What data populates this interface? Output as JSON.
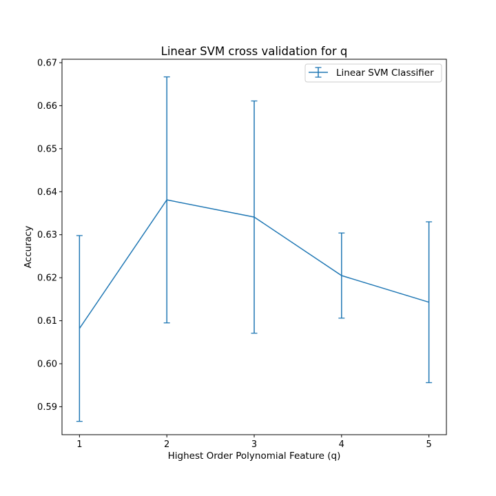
{
  "colors": {
    "series": "#1f77b4",
    "axis": "#000000",
    "legend_border": "#cccccc"
  },
  "chart_data": {
    "type": "line",
    "title": "Linear SVM cross validation for q",
    "xlabel": "Highest Order Polynomial Feature (q)",
    "ylabel": "Accuracy",
    "x": [
      1,
      2,
      3,
      4,
      5
    ],
    "xticks": [
      "1",
      "2",
      "3",
      "4",
      "5"
    ],
    "yticks": [
      "0.59",
      "0.60",
      "0.61",
      "0.62",
      "0.63",
      "0.64",
      "0.65",
      "0.66",
      "0.67"
    ],
    "ylim": [
      0.5835,
      0.6708
    ],
    "xlim": [
      0.8,
      5.2
    ],
    "grid": false,
    "legend_position": "top-right",
    "series": [
      {
        "name": "Linear SVM Classifier",
        "values": [
          0.6082,
          0.6381,
          0.6341,
          0.6205,
          0.6143
        ],
        "error": [
          0.0216,
          0.0286,
          0.027,
          0.0099,
          0.0187
        ]
      }
    ]
  }
}
